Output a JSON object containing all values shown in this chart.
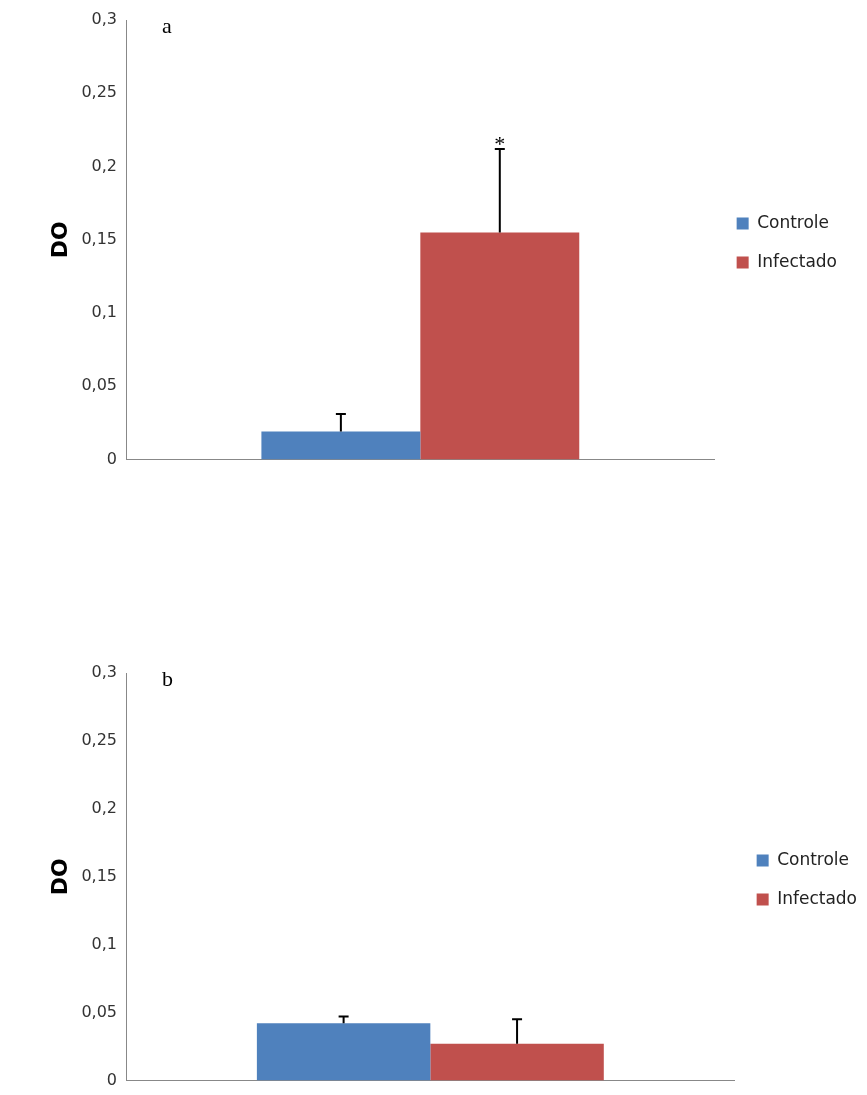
{
  "chart_data": [
    {
      "type": "bar",
      "ylabel": "DO",
      "categories": [
        null
      ],
      "series": [
        {
          "name": "Controle",
          "color": "#4f81bd",
          "values": [
            0.019
          ],
          "errors": [
            0.012
          ]
        },
        {
          "name": "Infectado",
          "color": "#c0504d",
          "values": [
            0.155
          ],
          "errors": [
            0.057
          ]
        }
      ],
      "ylim": [
        0,
        0.3
      ],
      "yticks": [
        0,
        {
          "value": 0.05,
          "label": "0,05"
        },
        {
          "value": 0.1,
          "label": "0,1"
        },
        {
          "value": 0.15,
          "label": "0,15"
        },
        {
          "value": 0.2,
          "label": "0,2"
        },
        {
          "value": 0.25,
          "label": "0,25"
        },
        {
          "value": 0.3,
          "label": "0,3"
        }
      ],
      "tick_labels": "y",
      "grid": false,
      "legend": "right",
      "annotations": [
        "a",
        {
          "text": "*",
          "y": 0.215
        }
      ]
    },
    {
      "type": "bar",
      "ylabel": "DO",
      "categories": [
        null
      ],
      "series": [
        {
          "name": "Controle",
          "color": "#4f81bd",
          "values": [
            0.042
          ],
          "errors": [
            0.005
          ]
        },
        {
          "name": "Infectado",
          "color": "#c0504d",
          "values": [
            0.027
          ],
          "errors": [
            0.018
          ]
        }
      ],
      "ylim": [
        0,
        0.3
      ],
      "yticks": [
        0,
        {
          "value": 0.05,
          "label": "0,05"
        },
        {
          "value": 0.1,
          "label": "0,1"
        },
        {
          "value": 0.15,
          "label": "0,15"
        },
        {
          "value": 0.2,
          "label": "0,2"
        },
        {
          "value": 0.25,
          "label": "0,25"
        },
        {
          "value": 0.3,
          "label": "0,3"
        }
      ],
      "tick_labels": "y",
      "grid": false,
      "legend": "right",
      "annotations": [
        "b"
      ]
    }
  ]
}
